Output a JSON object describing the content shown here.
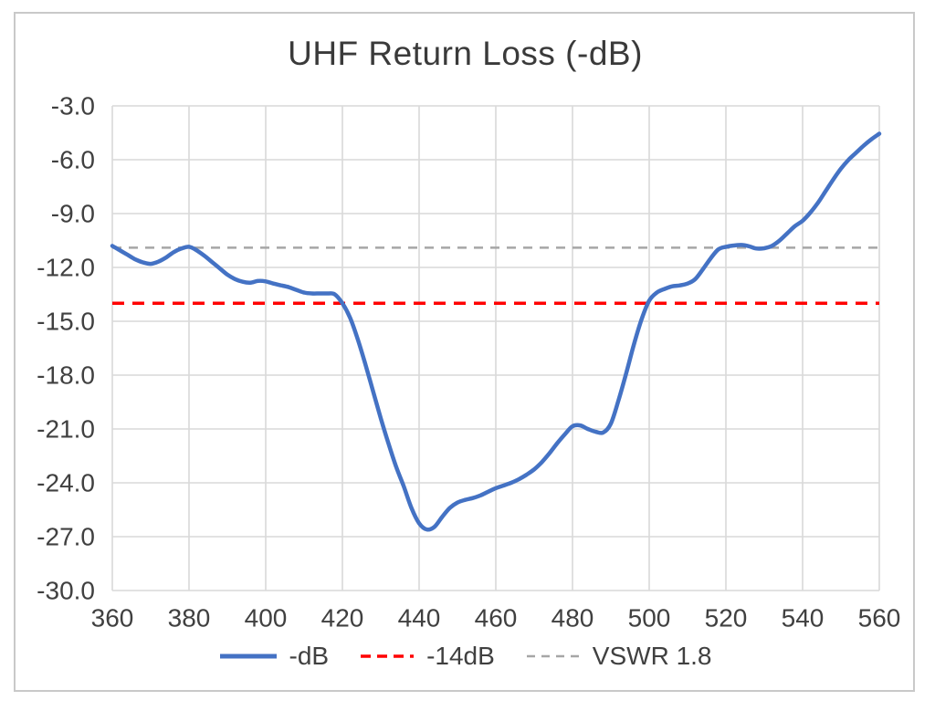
{
  "chart": {
    "title": "UHF Return Loss (-dB)"
  },
  "chart_data": {
    "type": "line",
    "title": "UHF Return Loss (-dB)",
    "xlabel": "",
    "ylabel": "",
    "xlim": [
      360,
      560
    ],
    "ylim": [
      -30,
      -3
    ],
    "grid": true,
    "legend_position": "bottom",
    "x_tick_labels": [
      "360",
      "380",
      "400",
      "420",
      "440",
      "460",
      "480",
      "500",
      "520",
      "540",
      "560"
    ],
    "x_ticks": [
      360,
      380,
      400,
      420,
      440,
      460,
      480,
      500,
      520,
      540,
      560
    ],
    "y_tick_labels": [
      "-3.0",
      "-6.0",
      "-9.0",
      "-12.0",
      "-15.0",
      "-18.0",
      "-21.0",
      "-24.0",
      "-27.0",
      "-30.0"
    ],
    "y_ticks": [
      -3,
      -6,
      -9,
      -12,
      -15,
      -18,
      -21,
      -24,
      -27,
      -30
    ],
    "grid_color": "#d9d9d9",
    "text_color": "#404040",
    "series": [
      {
        "name": "-dB",
        "kind": "line",
        "color": "#4472C4",
        "width": 4.5,
        "x": [
          360,
          362,
          364,
          366,
          368,
          370,
          372,
          374,
          376,
          378,
          380,
          382,
          384,
          386,
          388,
          390,
          392,
          394,
          396,
          398,
          400,
          402,
          404,
          406,
          408,
          410,
          412,
          414,
          416,
          418,
          420,
          422,
          424,
          426,
          428,
          430,
          432,
          434,
          436,
          438,
          440,
          442,
          444,
          446,
          448,
          450,
          452,
          454,
          456,
          458,
          460,
          462,
          464,
          466,
          468,
          470,
          472,
          474,
          476,
          478,
          480,
          482,
          484,
          486,
          488,
          490,
          492,
          494,
          496,
          498,
          500,
          502,
          504,
          506,
          508,
          510,
          512,
          514,
          516,
          518,
          520,
          522,
          524,
          526,
          528,
          530,
          532,
          534,
          536,
          538,
          540,
          542,
          544,
          546,
          548,
          550,
          552,
          554,
          556,
          558,
          560
        ],
        "y": [
          -10.8,
          -11.05,
          -11.3,
          -11.55,
          -11.72,
          -11.8,
          -11.68,
          -11.45,
          -11.15,
          -10.95,
          -10.85,
          -11.05,
          -11.35,
          -11.7,
          -12.05,
          -12.4,
          -12.65,
          -12.8,
          -12.85,
          -12.75,
          -12.78,
          -12.9,
          -13.0,
          -13.1,
          -13.25,
          -13.4,
          -13.45,
          -13.45,
          -13.45,
          -13.5,
          -14.0,
          -14.8,
          -16.0,
          -17.4,
          -18.9,
          -20.4,
          -21.8,
          -23.1,
          -24.2,
          -25.4,
          -26.25,
          -26.6,
          -26.45,
          -25.9,
          -25.4,
          -25.1,
          -24.95,
          -24.85,
          -24.7,
          -24.5,
          -24.3,
          -24.15,
          -24.0,
          -23.8,
          -23.55,
          -23.25,
          -22.85,
          -22.35,
          -21.8,
          -21.3,
          -20.85,
          -20.8,
          -21.0,
          -21.15,
          -21.2,
          -20.7,
          -19.4,
          -17.9,
          -16.3,
          -14.9,
          -13.85,
          -13.4,
          -13.2,
          -13.05,
          -13.0,
          -12.9,
          -12.65,
          -12.1,
          -11.5,
          -11.0,
          -10.85,
          -10.78,
          -10.75,
          -10.82,
          -10.95,
          -10.93,
          -10.8,
          -10.5,
          -10.1,
          -9.7,
          -9.4,
          -8.95,
          -8.4,
          -7.75,
          -7.1,
          -6.5,
          -6.0,
          -5.6,
          -5.2,
          -4.85,
          -4.55
        ]
      },
      {
        "name": "-14dB",
        "kind": "reference-line",
        "color": "#FF0000",
        "width": 3.5,
        "dash": "13 9",
        "value": -14
      },
      {
        "name": "VSWR 1.8",
        "kind": "reference-line",
        "color": "#A6A6A6",
        "width": 2.5,
        "dash": "10 8",
        "value": -10.9
      }
    ],
    "legend": [
      {
        "label": "-dB",
        "color": "#4472C4",
        "style": "solid",
        "width": 5
      },
      {
        "label": "-14dB",
        "color": "#FF0000",
        "style": "dashed",
        "dash": "11 7",
        "width": 3.5
      },
      {
        "label": "VSWR 1.8",
        "color": "#A6A6A6",
        "style": "dashed",
        "dash": "9 7",
        "width": 2.5
      }
    ]
  }
}
